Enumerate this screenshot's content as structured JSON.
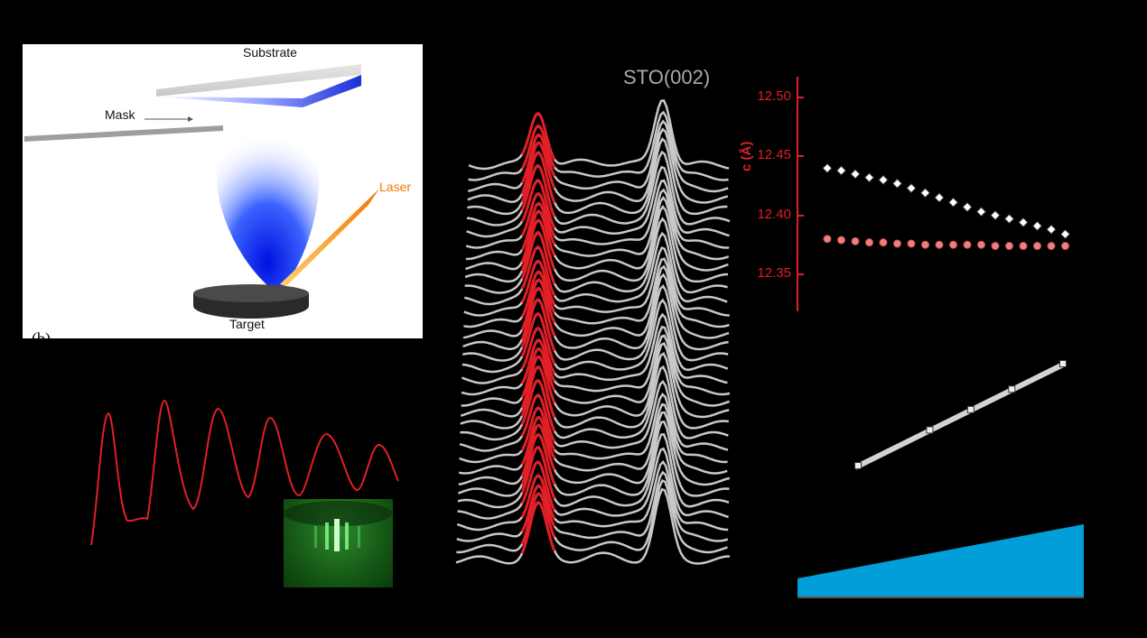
{
  "panel_a": {
    "substrate_label": "Substrate",
    "mask_label": "Mask",
    "laser_label": "Laser",
    "target_label": "Target",
    "panel_letter": "(b)"
  },
  "panel_xrd": {
    "peak_label": "STO(002)",
    "num_curves": 36
  },
  "chart_data": [
    {
      "type": "line",
      "title": "",
      "series": [
        {
          "name": "",
          "color": "#e21e26"
        }
      ],
      "peaks": 6,
      "inset": "RHEED pattern"
    },
    {
      "type": "scatter",
      "ylabel": "c (Å)",
      "yticks": [
        "12.50",
        "12.45",
        "12.40",
        "12.35"
      ],
      "ylim": [
        12.32,
        12.51
      ],
      "series": [
        {
          "name": "",
          "color": "#ffffff",
          "x": [
            0,
            1,
            2,
            3,
            4,
            5,
            6,
            7,
            8,
            9,
            10,
            11,
            12,
            13,
            14,
            15,
            16,
            17
          ],
          "values": [
            12.44,
            12.438,
            12.435,
            12.432,
            12.43,
            12.427,
            12.423,
            12.419,
            12.415,
            12.411,
            12.407,
            12.403,
            12.4,
            12.397,
            12.394,
            12.391,
            12.388,
            12.384
          ]
        },
        {
          "name": "",
          "color": "#f08080",
          "x": [
            0,
            1,
            2,
            3,
            4,
            5,
            6,
            7,
            8,
            9,
            10,
            11,
            12,
            13,
            14,
            15,
            16,
            17
          ],
          "values": [
            12.38,
            12.379,
            12.378,
            12.377,
            12.377,
            12.376,
            12.376,
            12.375,
            12.375,
            12.375,
            12.375,
            12.375,
            12.374,
            12.374,
            12.374,
            12.374,
            12.374,
            12.374
          ]
        }
      ]
    },
    {
      "type": "scatter",
      "series": [
        {
          "name": "",
          "color": "#d3d3d3",
          "x": [
            0,
            1,
            2,
            3,
            4
          ],
          "values": [
            0,
            0.35,
            0.55,
            0.75,
            1.0
          ]
        }
      ]
    },
    {
      "type": "area",
      "series": [
        {
          "name": "",
          "color": "#009fd9",
          "values": [
            0.25,
            1.0
          ]
        }
      ]
    }
  ]
}
